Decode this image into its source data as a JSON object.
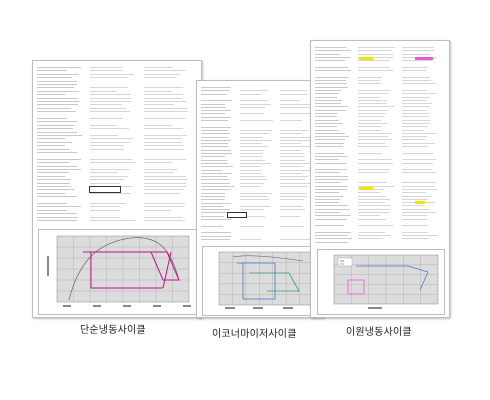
{
  "captions": {
    "simple": "단순냉동사이클",
    "economizer": "이코너마이저사이클",
    "twostage": "이원냉동사이클"
  },
  "colors": {
    "cycle_line": "#c0108f",
    "grid": "#9a9a9a",
    "plot_bg": "#dcdcdc",
    "highlight_yellow": "#f4e300",
    "highlight_pink": "#e25bd3",
    "series_green": "#2ea35a",
    "series_blue": "#4a74c9"
  }
}
